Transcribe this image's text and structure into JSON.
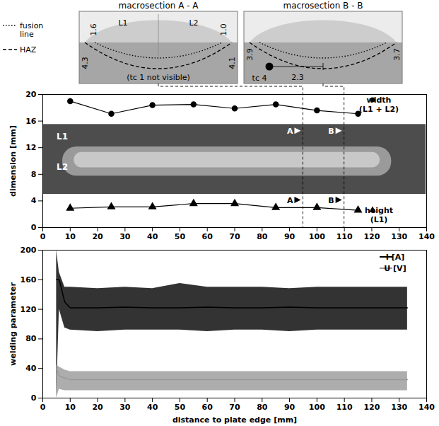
{
  "macrosections": {
    "legend": [
      {
        "label": "fusion line",
        "line_style": "dotted"
      },
      {
        "label": "HAZ",
        "line_style": "dashed"
      }
    ],
    "panels": [
      {
        "title": "macrosection A - A",
        "layers": [
          "L1",
          "L2"
        ],
        "dimensions_left": [
          "1.6",
          "4.3"
        ],
        "dimensions_right": [
          "1.0",
          "4.1"
        ],
        "note": "(tc 1 not visible)"
      },
      {
        "title": "macrosection B - B",
        "dimensions_left": [
          "3.9"
        ],
        "dimensions_right": [
          "3.7"
        ],
        "thermocouple": "tc 4",
        "thermocouple_distance": "2.3"
      }
    ]
  },
  "chart_data": [
    {
      "type": "line",
      "ylabel": "dimension [mm]",
      "xlim": [
        0,
        140
      ],
      "xticks": [
        0,
        10,
        20,
        30,
        40,
        50,
        60,
        70,
        80,
        90,
        100,
        110,
        120,
        130,
        140
      ],
      "ylim": [
        0,
        20
      ],
      "yticks": [
        0,
        4,
        8,
        12,
        16,
        20
      ],
      "legend": "right",
      "x": [
        10,
        25,
        40,
        55,
        70,
        85,
        100,
        115
      ],
      "series": [
        {
          "name": "width (L1 + L2)",
          "color": "#000000",
          "marker": "circle",
          "values": [
            19,
            17.1,
            18.4,
            18.5,
            17.9,
            18.5,
            17.6,
            17.1
          ]
        },
        {
          "name": "height (L1)",
          "color": "#000000",
          "marker": "triangle",
          "values": [
            2.9,
            3.1,
            3.1,
            3.6,
            3.6,
            3.0,
            3.0,
            2.6
          ]
        }
      ],
      "annotations": [
        "L1",
        "L2"
      ],
      "section_marks": [
        {
          "label": "A",
          "x": 95
        },
        {
          "label": "B",
          "x": 110
        }
      ]
    },
    {
      "type": "line",
      "xlabel": "distance to plate edge [mm]",
      "ylabel": "welding parameter",
      "xlim": [
        0,
        140
      ],
      "xticks": [
        0,
        10,
        20,
        30,
        40,
        50,
        60,
        70,
        80,
        90,
        100,
        110,
        120,
        130,
        140
      ],
      "ylim": [
        0,
        200
      ],
      "yticks": [
        0,
        40,
        80,
        120,
        160,
        200
      ],
      "legend": "top-right",
      "x": [
        5,
        6,
        8,
        10,
        20,
        30,
        40,
        50,
        60,
        70,
        80,
        90,
        100,
        110,
        120,
        130,
        133
      ],
      "series": [
        {
          "name": "I [A]",
          "color": "#000000",
          "values": [
            160,
            160,
            130,
            122,
            122,
            123,
            122,
            122,
            123,
            122,
            122,
            123,
            122,
            122,
            122,
            122,
            122
          ],
          "low": [
            0,
            120,
            95,
            92,
            90,
            92,
            92,
            92,
            90,
            92,
            92,
            90,
            92,
            92,
            92,
            92,
            92
          ],
          "high": [
            200,
            170,
            150,
            150,
            148,
            150,
            148,
            155,
            150,
            150,
            150,
            148,
            150,
            150,
            150,
            150,
            150
          ]
        },
        {
          "name": "U [V]",
          "color": "#999999",
          "values": [
            40,
            30,
            27,
            25,
            25,
            25,
            25,
            25,
            25,
            25,
            25,
            25,
            25,
            25,
            25,
            25,
            25
          ],
          "low": [
            0,
            12,
            10,
            10,
            10,
            10,
            10,
            10,
            10,
            10,
            10,
            10,
            10,
            10,
            10,
            10,
            10
          ],
          "high": [
            45,
            42,
            38,
            36,
            36,
            36,
            36,
            36,
            36,
            36,
            36,
            36,
            36,
            36,
            36,
            36,
            36
          ]
        }
      ]
    }
  ]
}
